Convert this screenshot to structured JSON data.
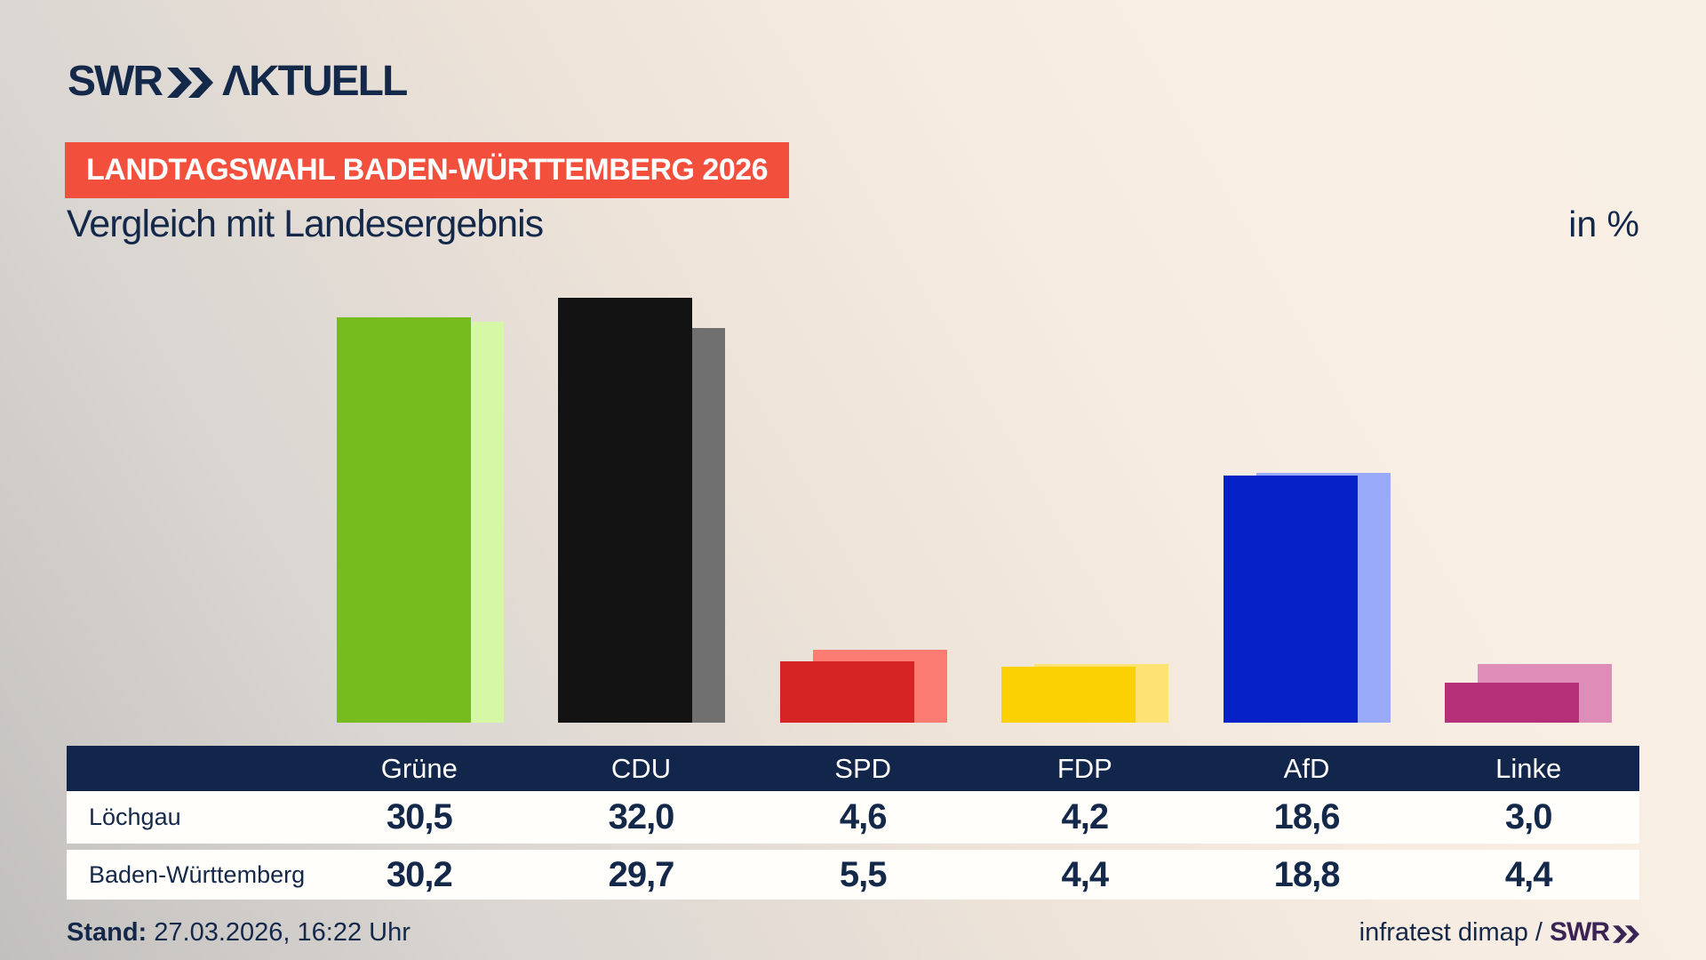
{
  "header": {
    "logo": {
      "swr": "SWR",
      "aktuell": "ΛKTUELL"
    },
    "badge": "LANDTAGSWAHL BADEN-WÜRTTEMBERG 2026",
    "title": "Vergleich mit Landesergebnis",
    "unit_label": "in %"
  },
  "chart_data": {
    "type": "bar",
    "categories": [
      "Grüne",
      "CDU",
      "SPD",
      "FDP",
      "AfD",
      "Linke"
    ],
    "series": [
      {
        "name": "Löchgau",
        "values": [
          30.5,
          32.0,
          4.6,
          4.2,
          18.6,
          3.0
        ]
      },
      {
        "name": "Baden-Württemberg",
        "values": [
          30.2,
          29.7,
          5.5,
          4.4,
          18.8,
          4.4
        ]
      }
    ],
    "title": "Vergleich mit Landesergebnis",
    "ylabel": "in %",
    "ylim": [
      0,
      33
    ],
    "grid": false,
    "legend_position": "table-below",
    "colors": {
      "front": [
        "#76bc1e",
        "#131313",
        "#d62323",
        "#fcd103",
        "#0522c8",
        "#b53078"
      ],
      "back": [
        "#d6f7a6",
        "#717070",
        "#fc7b72",
        "#fde373",
        "#98aaf8",
        "#de8db9"
      ]
    }
  },
  "table": {
    "rows": [
      {
        "label": "Löchgau",
        "values": [
          "30,5",
          "32,0",
          "4,6",
          "4,2",
          "18,6",
          "3,0"
        ]
      },
      {
        "label": "Baden-Württemberg",
        "values": [
          "30,2",
          "29,7",
          "5,5",
          "4,4",
          "18,8",
          "4,4"
        ]
      }
    ]
  },
  "footer": {
    "stand_label": "Stand:",
    "stand_value": " 27.03.2026, 16:22 Uhr",
    "source": "infratest dimap / ",
    "source_logo": "SWR"
  },
  "colors": {
    "navy": "#14284a",
    "badge_red": "#f2503c",
    "table_header": "#12254a",
    "footer_logo_purple": "#3a2456"
  }
}
